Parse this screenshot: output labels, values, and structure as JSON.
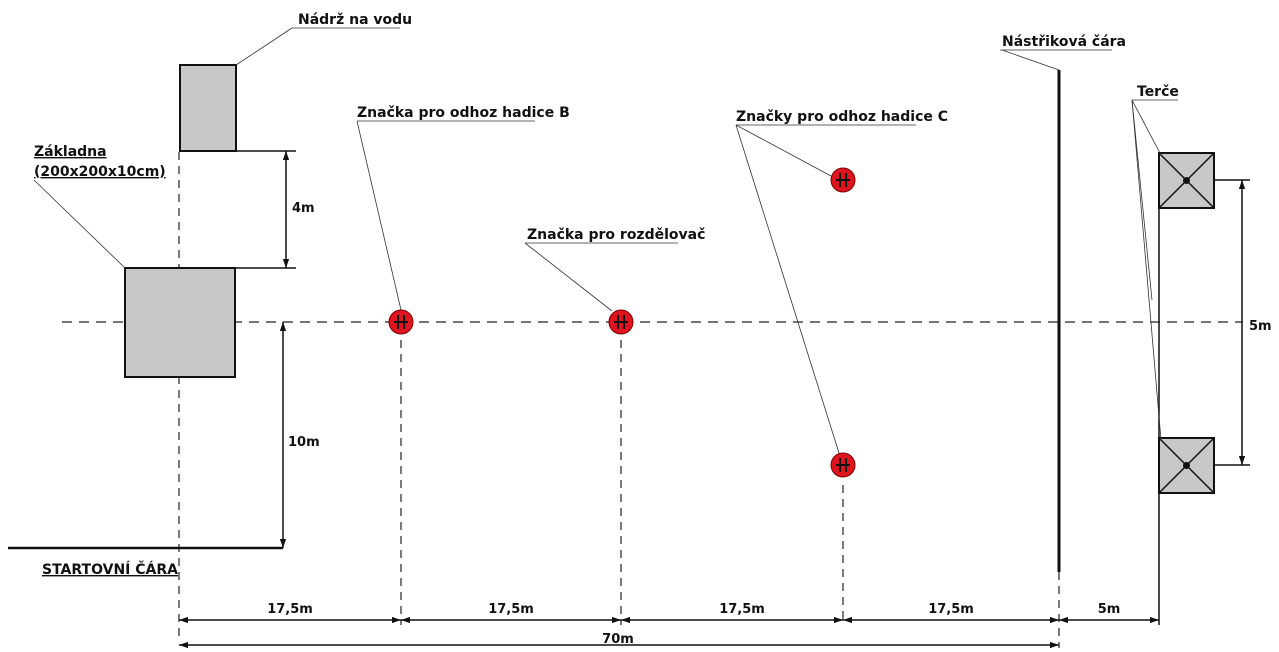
{
  "labels": {
    "tank": "Nádrž na vodu",
    "base_line1": "Základna",
    "base_line2": "(200x200x10cm)",
    "start_line": "STARTOVNÍ ČÁRA",
    "mark_b": "Značka pro odhoz hadice B",
    "mark_divider": "Značka pro rozdělovač",
    "mark_c": "Značky pro odhoz hadice C",
    "spray_line": "Nástřiková čára",
    "targets": "Terče"
  },
  "dimensions": {
    "d_4m": "4m",
    "d_10m": "10m",
    "d_5m_vertical": "5m",
    "seg1": "17,5m",
    "seg2": "17,5m",
    "seg3": "17,5m",
    "seg4": "17,5m",
    "seg5": "5m",
    "total": "70m"
  },
  "colors": {
    "marker_fill": "#e0141e",
    "box_fill": "#c8c8c8",
    "line": "#111111"
  },
  "icons": {
    "marker": "hose-coupling-marker-icon",
    "target": "target-cross-icon"
  }
}
